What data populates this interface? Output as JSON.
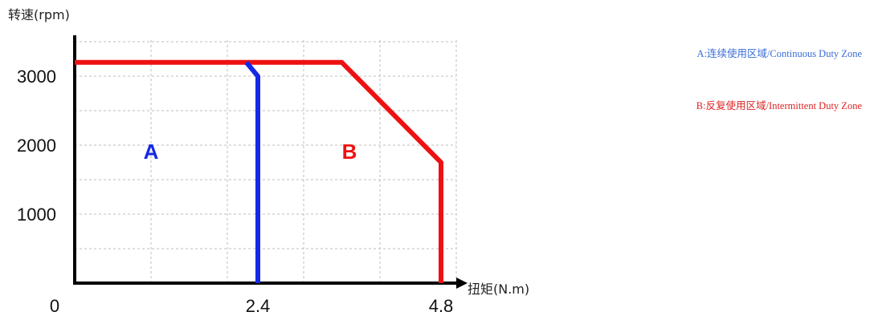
{
  "chart_data": {
    "type": "line",
    "ylabel": "转速(rpm)",
    "xlabel": "扭矩(N.m)",
    "x_ticks": [
      {
        "value": 0,
        "label": "0"
      },
      {
        "value": 2.4,
        "label": "2.4"
      },
      {
        "value": 4.8,
        "label": "4.8"
      }
    ],
    "y_ticks": [
      {
        "value": 1000,
        "label": "1000"
      },
      {
        "value": 2000,
        "label": "2000"
      },
      {
        "value": 3000,
        "label": "3000"
      }
    ],
    "xlim": [
      0,
      5
    ],
    "ylim": [
      0,
      3550
    ],
    "grid": true,
    "grid_x": [
      1.0,
      2.0,
      3.0,
      4.0,
      5.0
    ],
    "grid_y": [
      500,
      1000,
      1500,
      2000,
      2500,
      3000,
      3500
    ],
    "series": [
      {
        "name": "A:连续使用区域/Continuous Duty Zone",
        "region_label": "A",
        "color": "#1428e6",
        "label_at": [
          1.0,
          1800
        ],
        "x": [
          2.25,
          2.4,
          2.4
        ],
        "y": [
          3200,
          3000,
          0
        ]
      },
      {
        "name": "B:反复使用区域/Intermittent Duty Zone",
        "region_label": "B",
        "color": "#ee1111",
        "label_at": [
          3.6,
          1800
        ],
        "x": [
          0,
          3.5,
          4.8,
          4.8
        ],
        "y": [
          3200,
          3200,
          1750,
          0
        ]
      }
    ],
    "legend_position": "top-right",
    "legend_colors": [
      "#3a6bd8",
      "#dd2222"
    ]
  }
}
